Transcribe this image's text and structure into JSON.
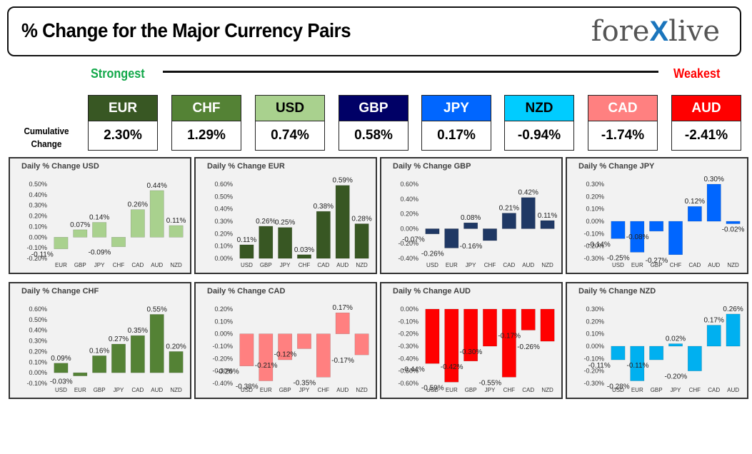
{
  "title": "% Change for the Major Currency Pairs",
  "logo": {
    "left": "fore",
    "mark": "X",
    "right": "live"
  },
  "strongest_label": "Strongest",
  "weakest_label": "Weakest",
  "cumulative_label_1": "Cumulative",
  "cumulative_label_2": "Change",
  "colors": {
    "EUR": "#385723",
    "CHF": "#548235",
    "USD": "#a9d18e",
    "GBP": "#000066",
    "JPY": "#0066ff",
    "NZD": "#00ccff",
    "CAD": "#ff8080",
    "AUD": "#ff0000"
  },
  "currencies": [
    {
      "code": "EUR",
      "value": "2.30%"
    },
    {
      "code": "CHF",
      "value": "1.29%"
    },
    {
      "code": "USD",
      "value": "0.74%"
    },
    {
      "code": "GBP",
      "value": "0.58%"
    },
    {
      "code": "JPY",
      "value": "0.17%"
    },
    {
      "code": "NZD",
      "value": "-0.94%"
    },
    {
      "code": "CAD",
      "value": "-1.74%"
    },
    {
      "code": "AUD",
      "value": "-2.41%"
    }
  ],
  "chart_data": [
    {
      "type": "bar",
      "title": "Daily % Change USD",
      "color": "#a9d18e",
      "categories": [
        "EUR",
        "GBP",
        "JPY",
        "CHF",
        "CAD",
        "AUD",
        "NZD"
      ],
      "values": [
        -0.11,
        0.07,
        0.14,
        -0.09,
        0.26,
        0.44,
        0.11
      ],
      "labels": [
        "-0.11%",
        "0.07%",
        "0.14%",
        "-0.09%",
        "0.26%",
        "0.44%",
        "0.11%"
      ],
      "ylim": [
        -0.2,
        0.5
      ],
      "ticks": [
        0.5,
        0.4,
        0.3,
        0.2,
        0.1,
        0.0,
        -0.1,
        -0.2
      ],
      "tick_labels": [
        "0.50%",
        "0.40%",
        "0.30%",
        "0.20%",
        "0.10%",
        "0.00%",
        "-0.10%",
        "-0.20%"
      ]
    },
    {
      "type": "bar",
      "title": "Daily % Change EUR",
      "color": "#385723",
      "categories": [
        "USD",
        "GBP",
        "JPY",
        "CHF",
        "CAD",
        "AUD",
        "NZD"
      ],
      "values": [
        0.11,
        0.26,
        0.25,
        0.03,
        0.38,
        0.59,
        0.28
      ],
      "labels": [
        "0.11%",
        "0.26%",
        "0.25%",
        "0.03%",
        "0.38%",
        "0.59%",
        "0.28%"
      ],
      "ylim": [
        0.0,
        0.6
      ],
      "ticks": [
        0.6,
        0.5,
        0.4,
        0.3,
        0.2,
        0.1,
        0.0
      ],
      "tick_labels": [
        "0.60%",
        "0.50%",
        "0.40%",
        "0.30%",
        "0.20%",
        "0.10%",
        "0.00%"
      ]
    },
    {
      "type": "bar",
      "title": "Daily % Change GBP",
      "color": "#1f3864",
      "categories": [
        "USD",
        "EUR",
        "JPY",
        "CHF",
        "CAD",
        "AUD",
        "NZD"
      ],
      "values": [
        -0.07,
        -0.26,
        0.08,
        -0.16,
        0.21,
        0.42,
        0.11
      ],
      "labels": [
        "-0.07%",
        "-0.26%",
        "0.08%",
        "-0.16%",
        "0.21%",
        "0.42%",
        "0.11%"
      ],
      "ylim": [
        -0.4,
        0.6
      ],
      "ticks": [
        0.6,
        0.4,
        0.2,
        0.0,
        -0.2,
        -0.4
      ],
      "tick_labels": [
        "0.60%",
        "0.40%",
        "0.20%",
        "0.00%",
        "-0.20%",
        "-0.40%"
      ]
    },
    {
      "type": "bar",
      "title": "Daily % Change JPY",
      "color": "#0066ff",
      "categories": [
        "USD",
        "EUR",
        "GBP",
        "CHF",
        "CAD",
        "AUD",
        "NZD"
      ],
      "values": [
        -0.14,
        -0.25,
        -0.08,
        -0.27,
        0.12,
        0.3,
        -0.02
      ],
      "labels": [
        "-0.14%",
        "-0.25%",
        "-0.08%",
        "-0.27%",
        "0.12%",
        "0.30%",
        "-0.02%"
      ],
      "ylim": [
        -0.3,
        0.3
      ],
      "ticks": [
        0.3,
        0.2,
        0.1,
        0.0,
        -0.1,
        -0.2,
        -0.3
      ],
      "tick_labels": [
        "0.30%",
        "0.20%",
        "0.10%",
        "0.00%",
        "-0.10%",
        "-0.20%",
        "-0.30%"
      ]
    },
    {
      "type": "bar",
      "title": "Daily % Change CHF",
      "color": "#548235",
      "categories": [
        "USD",
        "EUR",
        "GBP",
        "JPY",
        "CAD",
        "AUD",
        "NZD"
      ],
      "values": [
        0.09,
        -0.03,
        0.16,
        0.27,
        0.35,
        0.55,
        0.2
      ],
      "labels": [
        "0.09%",
        "-0.03%",
        "0.16%",
        "0.27%",
        "0.35%",
        "0.55%",
        "0.20%"
      ],
      "ylim": [
        -0.1,
        0.6
      ],
      "ticks": [
        0.6,
        0.5,
        0.4,
        0.3,
        0.2,
        0.1,
        0.0,
        -0.1
      ],
      "tick_labels": [
        "0.60%",
        "0.50%",
        "0.40%",
        "0.30%",
        "0.20%",
        "0.10%",
        "0.00%",
        "-0.10%"
      ]
    },
    {
      "type": "bar",
      "title": "Daily % Change CAD",
      "color": "#ff8080",
      "categories": [
        "USD",
        "EUR",
        "GBP",
        "JPY",
        "CHF",
        "AUD",
        "NZD"
      ],
      "values": [
        -0.26,
        -0.38,
        -0.21,
        -0.12,
        -0.35,
        0.17,
        -0.17
      ],
      "labels": [
        "-0.26%",
        "-0.38%",
        "-0.21%",
        "-0.12%",
        "-0.35%",
        "0.17%",
        "-0.17%"
      ],
      "ylim": [
        -0.4,
        0.2
      ],
      "ticks": [
        0.2,
        0.1,
        0.0,
        -0.1,
        -0.2,
        -0.3,
        -0.4
      ],
      "tick_labels": [
        "0.20%",
        "0.10%",
        "0.00%",
        "-0.10%",
        "-0.20%",
        "-0.30%",
        "-0.40%"
      ]
    },
    {
      "type": "bar",
      "title": "Daily % Change AUD",
      "color": "#ff0000",
      "categories": [
        "USD",
        "EUR",
        "GBP",
        "JPY",
        "CHF",
        "CAD",
        "NZD"
      ],
      "values": [
        -0.44,
        -0.59,
        -0.42,
        -0.3,
        -0.55,
        -0.17,
        -0.26
      ],
      "labels": [
        "-0.44%",
        "-0.59%",
        "-0.42%",
        "-0.30%",
        "-0.55%",
        "-0.17%",
        "-0.26%"
      ],
      "ylim": [
        -0.6,
        0.0
      ],
      "ticks": [
        0.0,
        -0.1,
        -0.2,
        -0.3,
        -0.4,
        -0.5,
        -0.6
      ],
      "tick_labels": [
        "0.00%",
        "-0.10%",
        "-0.20%",
        "-0.30%",
        "-0.40%",
        "-0.50%",
        "-0.60%"
      ]
    },
    {
      "type": "bar",
      "title": "Daily % Change NZD",
      "color": "#00b0f0",
      "categories": [
        "USD",
        "EUR",
        "GBP",
        "JPY",
        "CHF",
        "CAD",
        "AUD"
      ],
      "values": [
        -0.11,
        -0.28,
        -0.11,
        0.02,
        -0.2,
        0.17,
        0.26
      ],
      "labels": [
        "-0.11%",
        "-0.28%",
        "-0.11%",
        "0.02%",
        "-0.20%",
        "0.17%",
        "0.26%"
      ],
      "ylim": [
        -0.3,
        0.3
      ],
      "ticks": [
        0.3,
        0.2,
        0.1,
        0.0,
        -0.1,
        -0.2,
        -0.3
      ],
      "tick_labels": [
        "0.30%",
        "0.20%",
        "0.10%",
        "0.00%",
        "-0.10%",
        "-0.20%",
        "-0.30%"
      ]
    }
  ]
}
